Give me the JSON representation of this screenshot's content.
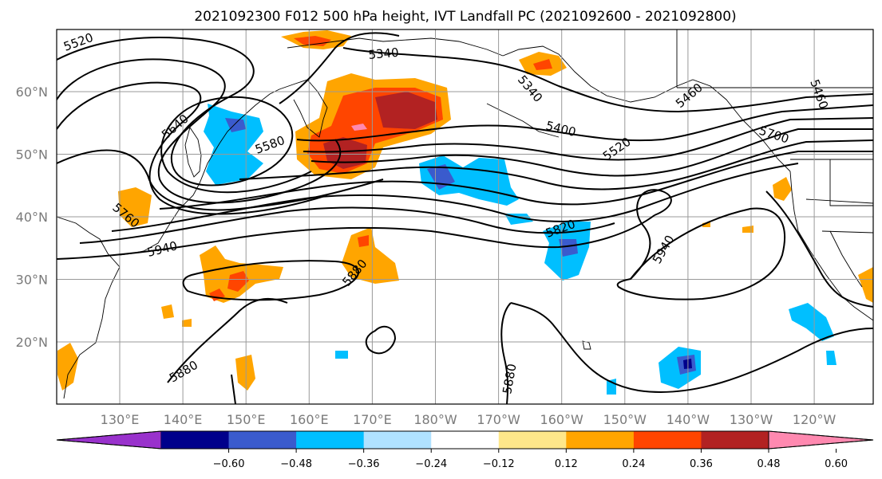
{
  "chart_data": {
    "type": "contour-map",
    "title": "2021092300 F012 500 hPa height, IVT Landfall PC (2021092600 - 2021092800)",
    "lat_ticks": [
      "20°N",
      "30°N",
      "40°N",
      "50°N",
      "60°N"
    ],
    "lon_ticks": [
      "130°E",
      "140°E",
      "150°E",
      "160°E",
      "170°E",
      "180°W",
      "170°W",
      "160°W",
      "150°W",
      "140°W",
      "130°W",
      "120°W"
    ],
    "grid": true,
    "colorbar": {
      "ticks": [
        "−0.60",
        "−0.48",
        "−0.36",
        "−0.24",
        "−0.12",
        "0.12",
        "0.24",
        "0.36",
        "0.48",
        "0.60"
      ],
      "colors": [
        "#9932cc",
        "#00008b",
        "#3a5bcd",
        "#00bfff",
        "#b0e2ff",
        "#ffffff",
        "#fee78a",
        "#ffa500",
        "#ff4500",
        "#b22222",
        "#ff89b0"
      ],
      "extend": "both",
      "orientation": "horizontal",
      "position": "bottom"
    },
    "contour_levels": [
      5340,
      5400,
      5460,
      5520,
      5580,
      5640,
      5700,
      5760,
      5820,
      5880,
      5940
    ],
    "contour_labels": [
      {
        "text": "5520"
      },
      {
        "text": "5340"
      },
      {
        "text": "5340"
      },
      {
        "text": "5400"
      },
      {
        "text": "5460"
      },
      {
        "text": "5460"
      },
      {
        "text": "5640"
      },
      {
        "text": "5580"
      },
      {
        "text": "5700"
      },
      {
        "text": "5520"
      },
      {
        "text": "5760"
      },
      {
        "text": "5820"
      },
      {
        "text": "5880"
      },
      {
        "text": "5940"
      },
      {
        "text": "5940"
      },
      {
        "text": "5880"
      },
      {
        "text": "5880"
      }
    ]
  }
}
